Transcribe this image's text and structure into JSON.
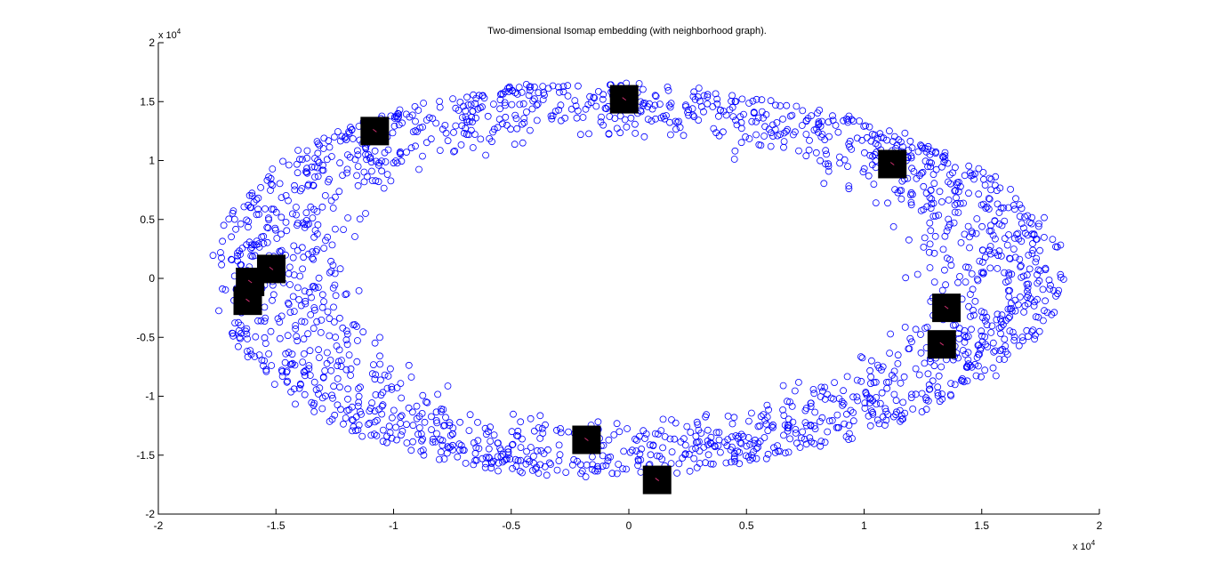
{
  "chart_data": {
    "type": "scatter",
    "title": "Two-dimensional Isomap embedding (with neighborhood graph).",
    "xlabel": "",
    "ylabel": "",
    "xlim": [
      -2,
      2
    ],
    "ylim": [
      -2,
      2
    ],
    "x_multiplier_label": "x 10",
    "x_multiplier_exp": "4",
    "y_multiplier_label": "x 10",
    "y_multiplier_exp": "4",
    "x_ticks": [
      -2,
      -1.5,
      -1,
      -0.5,
      0,
      0.5,
      1,
      1.5,
      2
    ],
    "y_ticks": [
      -2,
      -1.5,
      -1,
      -0.5,
      0,
      0.5,
      1,
      1.5,
      2
    ],
    "x_tick_labels": [
      "-2",
      "-1.5",
      "-1",
      "-0.5",
      "0",
      "0.5",
      "1",
      "1.5",
      "2"
    ],
    "y_tick_labels": [
      "-2",
      "-1.5",
      "-1",
      "-0.5",
      "0",
      "0.5",
      "1",
      "1.5",
      "2"
    ],
    "grid": false,
    "marker": "circle-open",
    "marker_color": "#0000ff",
    "ring": {
      "description": "points distributed in an elliptical annulus",
      "center": [
        0.0,
        0.0
      ],
      "outer_radii": [
        1.83,
        1.68
      ],
      "inner_radii": [
        1.03,
        1.08
      ],
      "point_count": 2000
    },
    "image_thumbnails": [
      {
        "x": -1.08,
        "y": 1.25
      },
      {
        "x": -0.02,
        "y": 1.52
      },
      {
        "x": 1.12,
        "y": 0.97
      },
      {
        "x": -1.52,
        "y": 0.08
      },
      {
        "x": -1.61,
        "y": -0.03
      },
      {
        "x": -1.62,
        "y": -0.19
      },
      {
        "x": 1.35,
        "y": -0.25
      },
      {
        "x": 1.33,
        "y": -0.56
      },
      {
        "x": -0.18,
        "y": -1.37
      },
      {
        "x": 0.12,
        "y": -1.71
      }
    ],
    "thumbnail_color": "#000000"
  }
}
